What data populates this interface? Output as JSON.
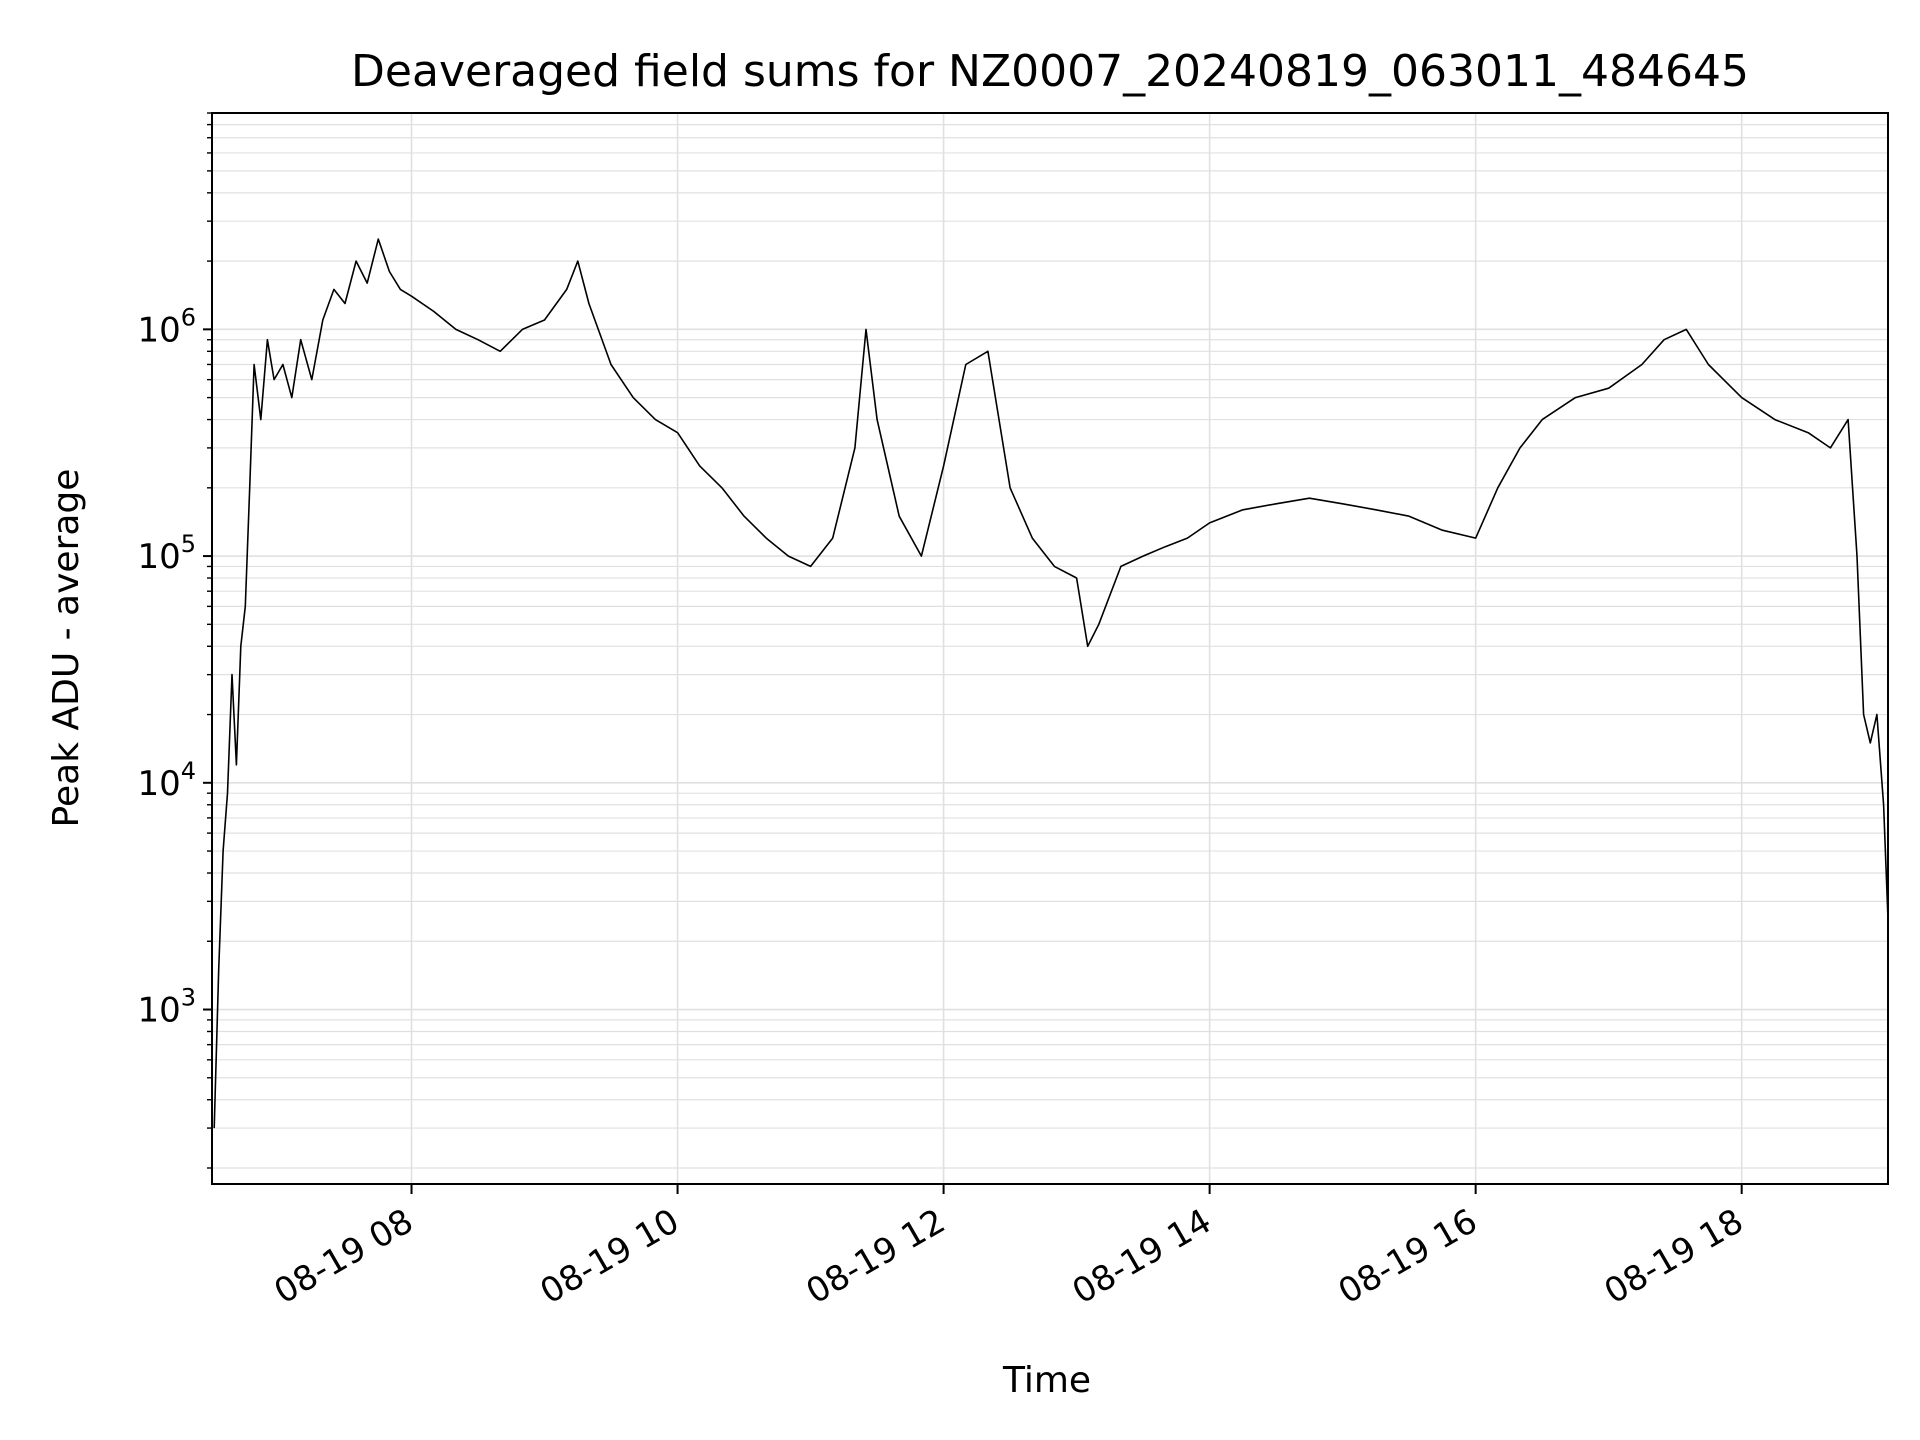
{
  "chart_data": {
    "type": "line",
    "title": "Deaveraged field sums for NZ0007_20240819_063011_484645",
    "xlabel": "Time",
    "ylabel": "Peak ADU - average",
    "yscale": "log",
    "grid": true,
    "line_color": "#000000",
    "grid_color": "#e0e0e0",
    "xlim": [
      "2024-08-19 06:30",
      "2024-08-19 19:06"
    ],
    "ylim": [
      170,
      9000000
    ],
    "x_ticks": [
      {
        "value": "2024-08-19 08:00",
        "label": "08-19 08"
      },
      {
        "value": "2024-08-19 10:00",
        "label": "08-19 10"
      },
      {
        "value": "2024-08-19 12:00",
        "label": "08-19 12"
      },
      {
        "value": "2024-08-19 14:00",
        "label": "08-19 14"
      },
      {
        "value": "2024-08-19 16:00",
        "label": "08-19 16"
      },
      {
        "value": "2024-08-19 18:00",
        "label": "08-19 18"
      }
    ],
    "y_ticks": [
      {
        "value": 1000,
        "base": "10",
        "exp": "3"
      },
      {
        "value": 10000,
        "base": "10",
        "exp": "4"
      },
      {
        "value": 100000,
        "base": "10",
        "exp": "5"
      },
      {
        "value": 1000000,
        "base": "10",
        "exp": "6"
      }
    ],
    "series": [
      {
        "x": [
          "2024-08-19 06:31",
          "2024-08-19 06:33",
          "2024-08-19 06:35",
          "2024-08-19 06:37",
          "2024-08-19 06:39",
          "2024-08-19 06:41",
          "2024-08-19 06:43",
          "2024-08-19 06:45",
          "2024-08-19 06:47",
          "2024-08-19 06:49",
          "2024-08-19 06:52",
          "2024-08-19 06:55",
          "2024-08-19 06:58",
          "2024-08-19 07:02",
          "2024-08-19 07:06",
          "2024-08-19 07:10",
          "2024-08-19 07:15",
          "2024-08-19 07:20",
          "2024-08-19 07:25",
          "2024-08-19 07:30",
          "2024-08-19 07:35",
          "2024-08-19 07:40",
          "2024-08-19 07:45",
          "2024-08-19 07:50",
          "2024-08-19 07:55",
          "2024-08-19 08:00",
          "2024-08-19 08:10",
          "2024-08-19 08:20",
          "2024-08-19 08:30",
          "2024-08-19 08:40",
          "2024-08-19 08:50",
          "2024-08-19 09:00",
          "2024-08-19 09:10",
          "2024-08-19 09:15",
          "2024-08-19 09:20",
          "2024-08-19 09:30",
          "2024-08-19 09:40",
          "2024-08-19 09:50",
          "2024-08-19 10:00",
          "2024-08-19 10:10",
          "2024-08-19 10:20",
          "2024-08-19 10:30",
          "2024-08-19 10:40",
          "2024-08-19 10:50",
          "2024-08-19 11:00",
          "2024-08-19 11:10",
          "2024-08-19 11:20",
          "2024-08-19 11:25",
          "2024-08-19 11:30",
          "2024-08-19 11:40",
          "2024-08-19 11:50",
          "2024-08-19 12:00",
          "2024-08-19 12:10",
          "2024-08-19 12:20",
          "2024-08-19 12:30",
          "2024-08-19 12:40",
          "2024-08-19 12:50",
          "2024-08-19 13:00",
          "2024-08-19 13:05",
          "2024-08-19 13:10",
          "2024-08-19 13:20",
          "2024-08-19 13:30",
          "2024-08-19 13:40",
          "2024-08-19 13:50",
          "2024-08-19 14:00",
          "2024-08-19 14:15",
          "2024-08-19 14:30",
          "2024-08-19 14:45",
          "2024-08-19 15:00",
          "2024-08-19 15:15",
          "2024-08-19 15:30",
          "2024-08-19 15:45",
          "2024-08-19 16:00",
          "2024-08-19 16:10",
          "2024-08-19 16:20",
          "2024-08-19 16:30",
          "2024-08-19 16:45",
          "2024-08-19 17:00",
          "2024-08-19 17:15",
          "2024-08-19 17:25",
          "2024-08-19 17:35",
          "2024-08-19 17:45",
          "2024-08-19 18:00",
          "2024-08-19 18:15",
          "2024-08-19 18:30",
          "2024-08-19 18:40",
          "2024-08-19 18:48",
          "2024-08-19 18:52",
          "2024-08-19 18:55",
          "2024-08-19 18:58",
          "2024-08-19 19:01",
          "2024-08-19 19:04",
          "2024-08-19 19:06"
        ],
        "y": [
          300,
          1500,
          5000,
          9000,
          30000,
          12000,
          40000,
          60000,
          200000,
          700000,
          400000,
          900000,
          600000,
          700000,
          500000,
          900000,
          600000,
          1100000,
          1500000,
          1300000,
          2000000,
          1600000,
          2500000,
          1800000,
          1500000,
          1400000,
          1200000,
          1000000,
          900000,
          800000,
          1000000,
          1100000,
          1500000,
          2000000,
          1300000,
          700000,
          500000,
          400000,
          350000,
          250000,
          200000,
          150000,
          120000,
          100000,
          90000,
          120000,
          300000,
          1000000,
          400000,
          150000,
          100000,
          250000,
          700000,
          800000,
          200000,
          120000,
          90000,
          80000,
          40000,
          50000,
          90000,
          100000,
          110000,
          120000,
          140000,
          160000,
          170000,
          180000,
          170000,
          160000,
          150000,
          130000,
          120000,
          200000,
          300000,
          400000,
          500000,
          550000,
          700000,
          900000,
          1000000,
          700000,
          500000,
          400000,
          350000,
          300000,
          400000,
          100000,
          20000,
          15000,
          20000,
          8000,
          2500
        ]
      }
    ]
  }
}
